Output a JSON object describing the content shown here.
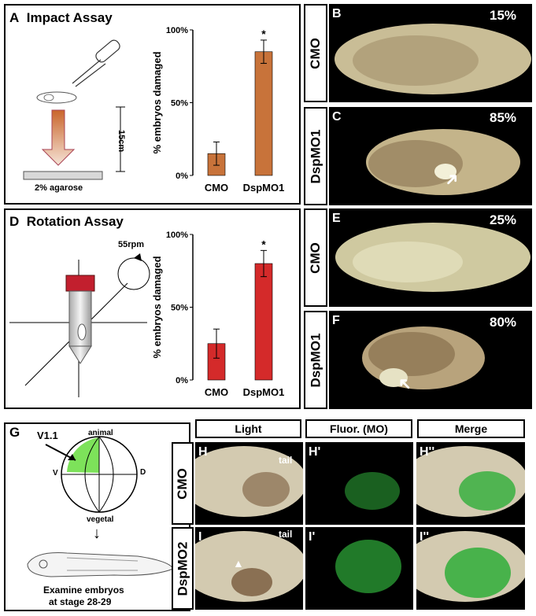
{
  "panelA": {
    "letter": "A",
    "title": "Impact Assay",
    "height_label": "15cm",
    "base_label": "2% agarose"
  },
  "panelD": {
    "letter": "D",
    "title": "Rotation Assay",
    "rpm_label": "55rpm"
  },
  "chart_data": [
    {
      "type": "bar",
      "categories": [
        "CMO",
        "DspMO1"
      ],
      "values": [
        15,
        85
      ],
      "errors": [
        8,
        8
      ],
      "significance": [
        "",
        "*"
      ],
      "ylabel": "% embryos damaged",
      "ylim": [
        0,
        100
      ],
      "yticks": [
        "0%",
        "50%",
        "100%"
      ],
      "color": "#c8733a"
    },
    {
      "type": "bar",
      "categories": [
        "CMO",
        "DspMO1"
      ],
      "values": [
        25,
        80
      ],
      "errors": [
        10,
        9
      ],
      "significance": [
        "",
        "*"
      ],
      "ylabel": "% embryos damaged",
      "ylim": [
        0,
        100
      ],
      "yticks": [
        "0%",
        "50%",
        "100%"
      ],
      "color": "#d42a2a"
    }
  ],
  "photos": {
    "B": {
      "letter": "B",
      "row_label": "CMO",
      "pct": "15%"
    },
    "C": {
      "letter": "C",
      "row_label": "DspMO1",
      "pct": "85%"
    },
    "E": {
      "letter": "E",
      "row_label": "CMO",
      "pct": "25%"
    },
    "F": {
      "letter": "F",
      "row_label": "DspMO1",
      "pct": "80%"
    }
  },
  "panelG": {
    "letter": "G",
    "v11": "V1.1",
    "animal": "animal",
    "vegetal": "vegetal",
    "v": "V",
    "d": "D",
    "caption_line1": "Examine embryos",
    "caption_line2": "at stage 28-29"
  },
  "bottom": {
    "headers": [
      "Light",
      "Fluor. (MO)",
      "Merge"
    ],
    "row1_label": "CMO",
    "row2_label": "DspMO2",
    "letters_row1": [
      "H",
      "H'",
      "H''"
    ],
    "letters_row2": [
      "I",
      "I'",
      "I''"
    ],
    "tail_label": "tail"
  },
  "colors": {
    "impact_bar": "#c8733a",
    "rotation_bar": "#d42a2a",
    "fluor_green": "#2fae3a",
    "v11_fill": "#7de25a"
  }
}
